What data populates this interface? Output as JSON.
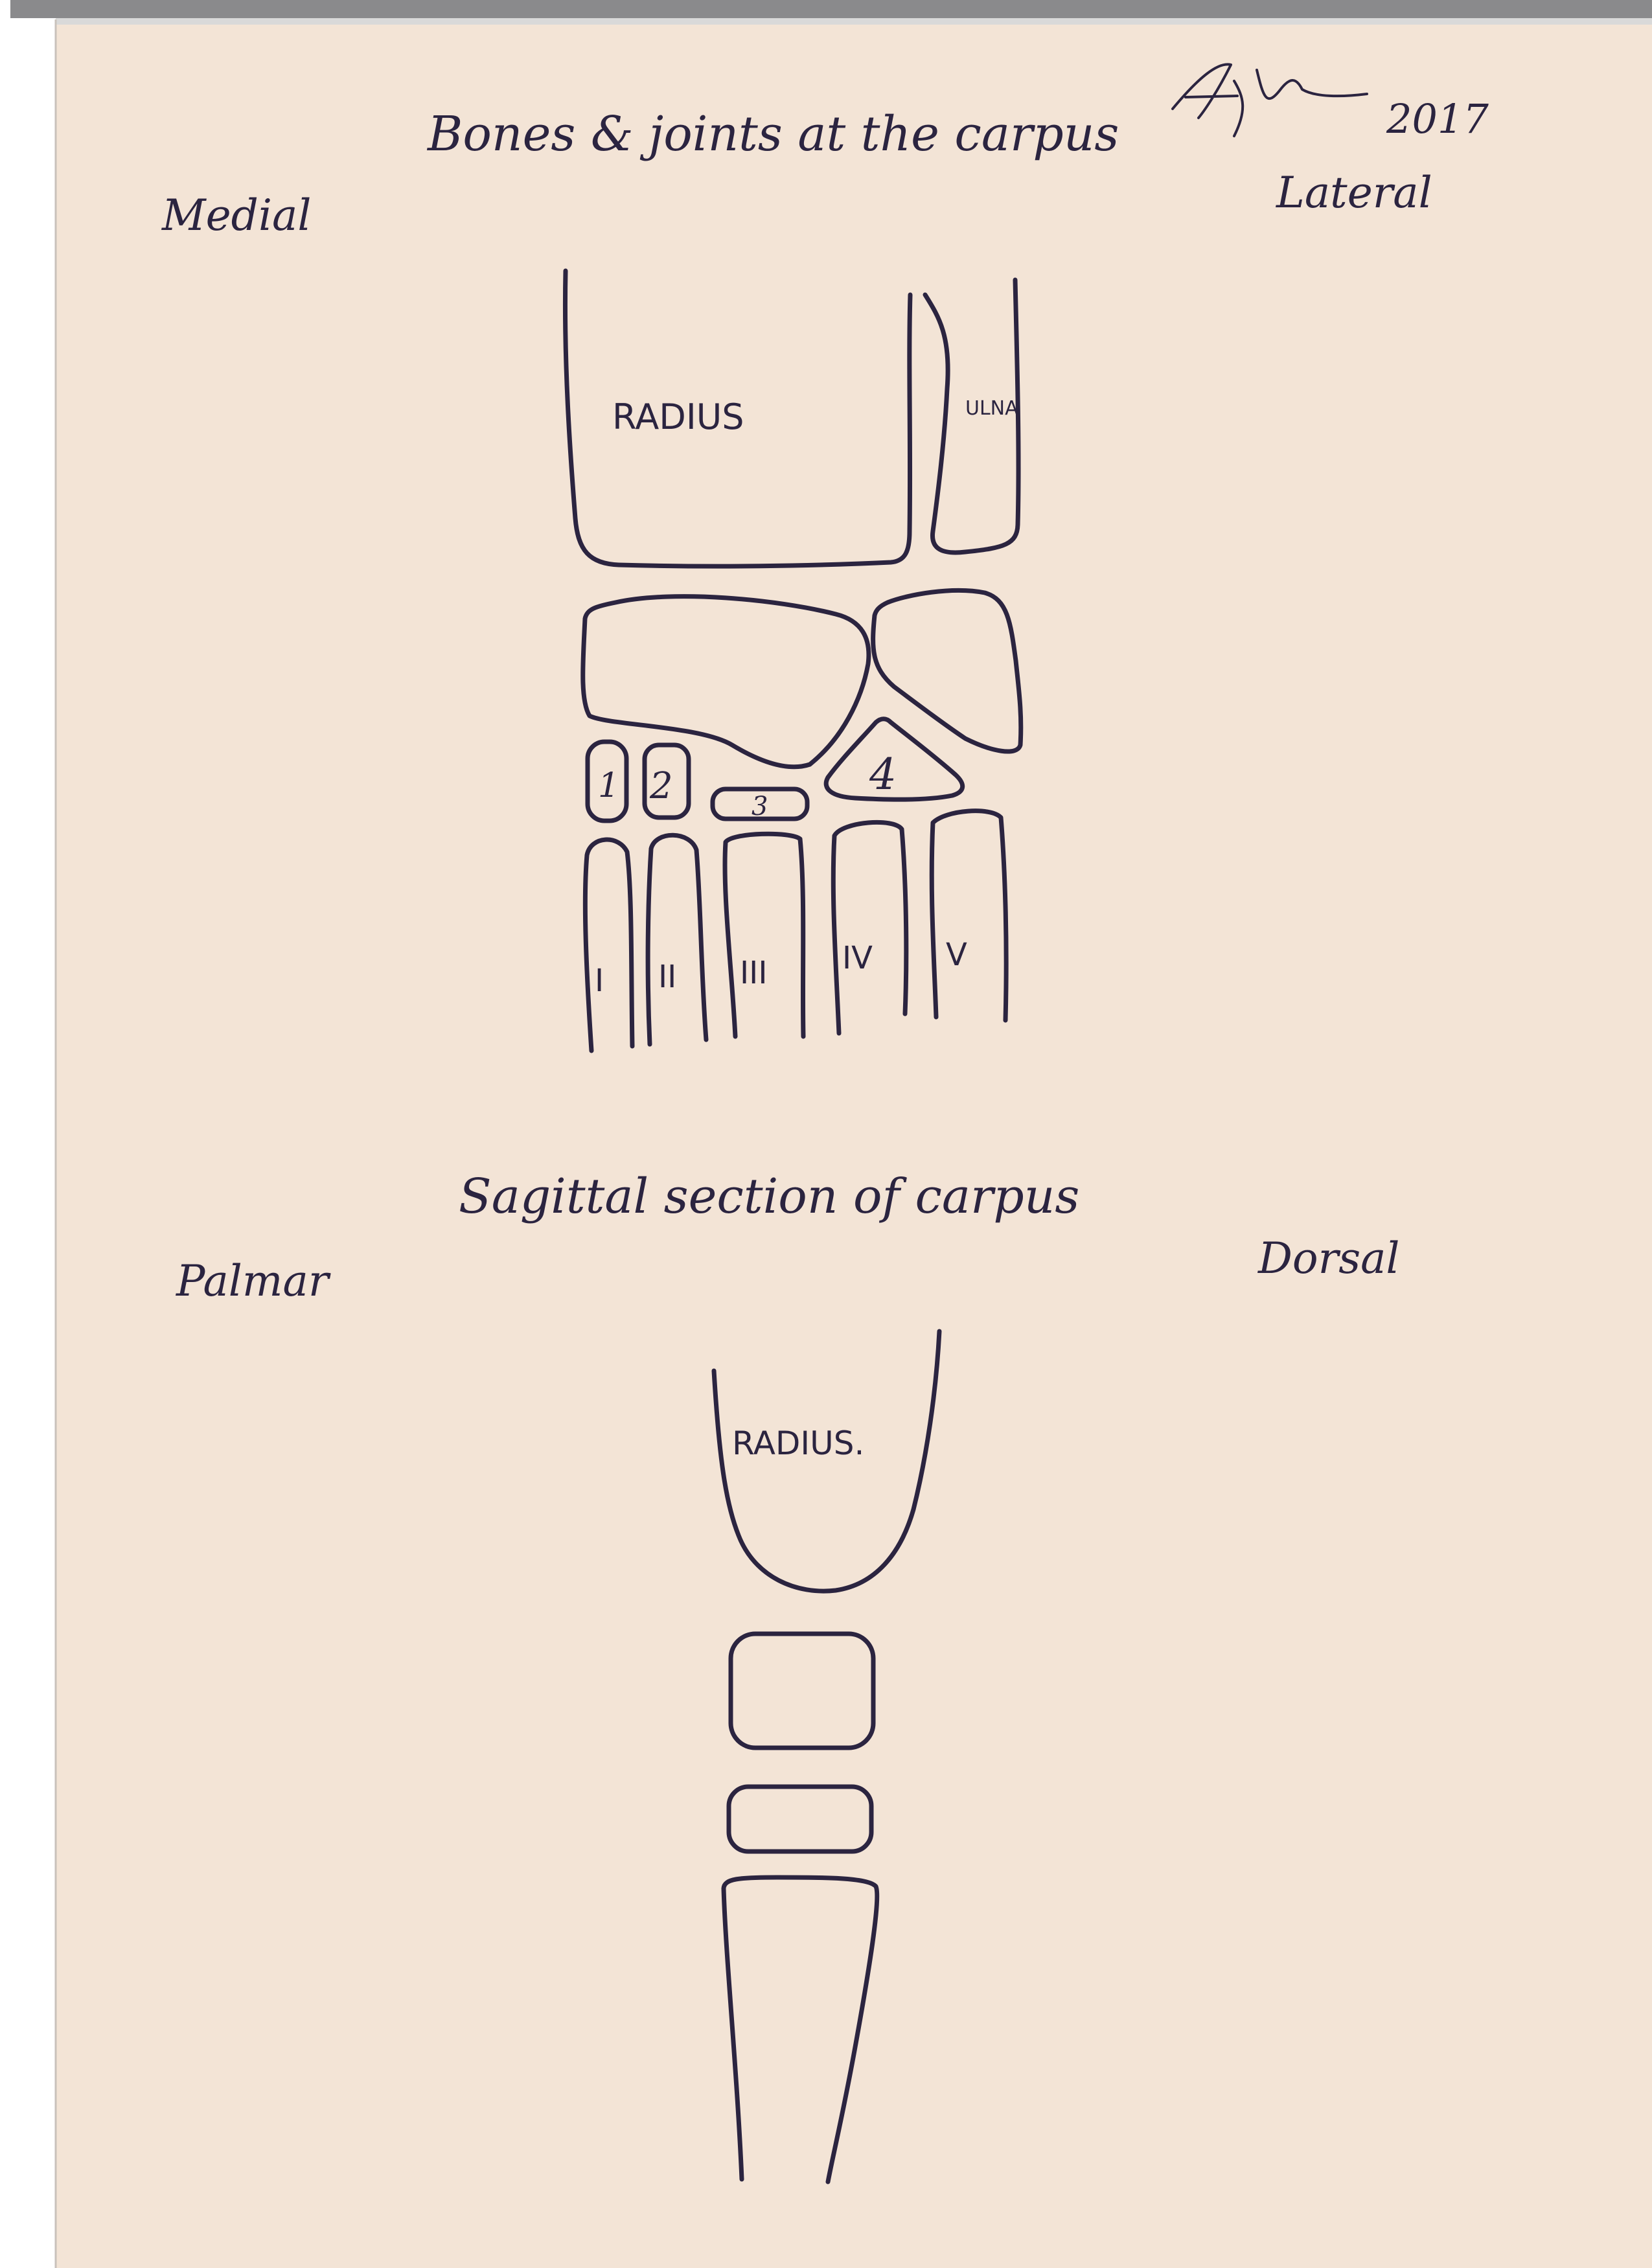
{
  "top_diagram": {
    "title": "Bones & joints at the carpus",
    "left_label": "Medial",
    "right_label": "Lateral",
    "bone_labels": {
      "radius": "RADIUS",
      "ulna": "ULNA",
      "carpal_1": "1",
      "carpal_2": "2",
      "carpal_3": "3",
      "carpal_4": "4",
      "metacarpal_1": "I",
      "metacarpal_2": "II",
      "metacarpal_3": "III",
      "metacarpal_4": "IV",
      "metacarpal_5": "V"
    }
  },
  "signature": {
    "year": "2017"
  },
  "bottom_diagram": {
    "title": "Sagittal section of carpus",
    "left_label": "Palmar",
    "right_label": "Dorsal",
    "bone_labels": {
      "radius": "RADIUS."
    }
  },
  "colors": {
    "paper": "#f3e4d6",
    "ink": "#2b2440"
  }
}
